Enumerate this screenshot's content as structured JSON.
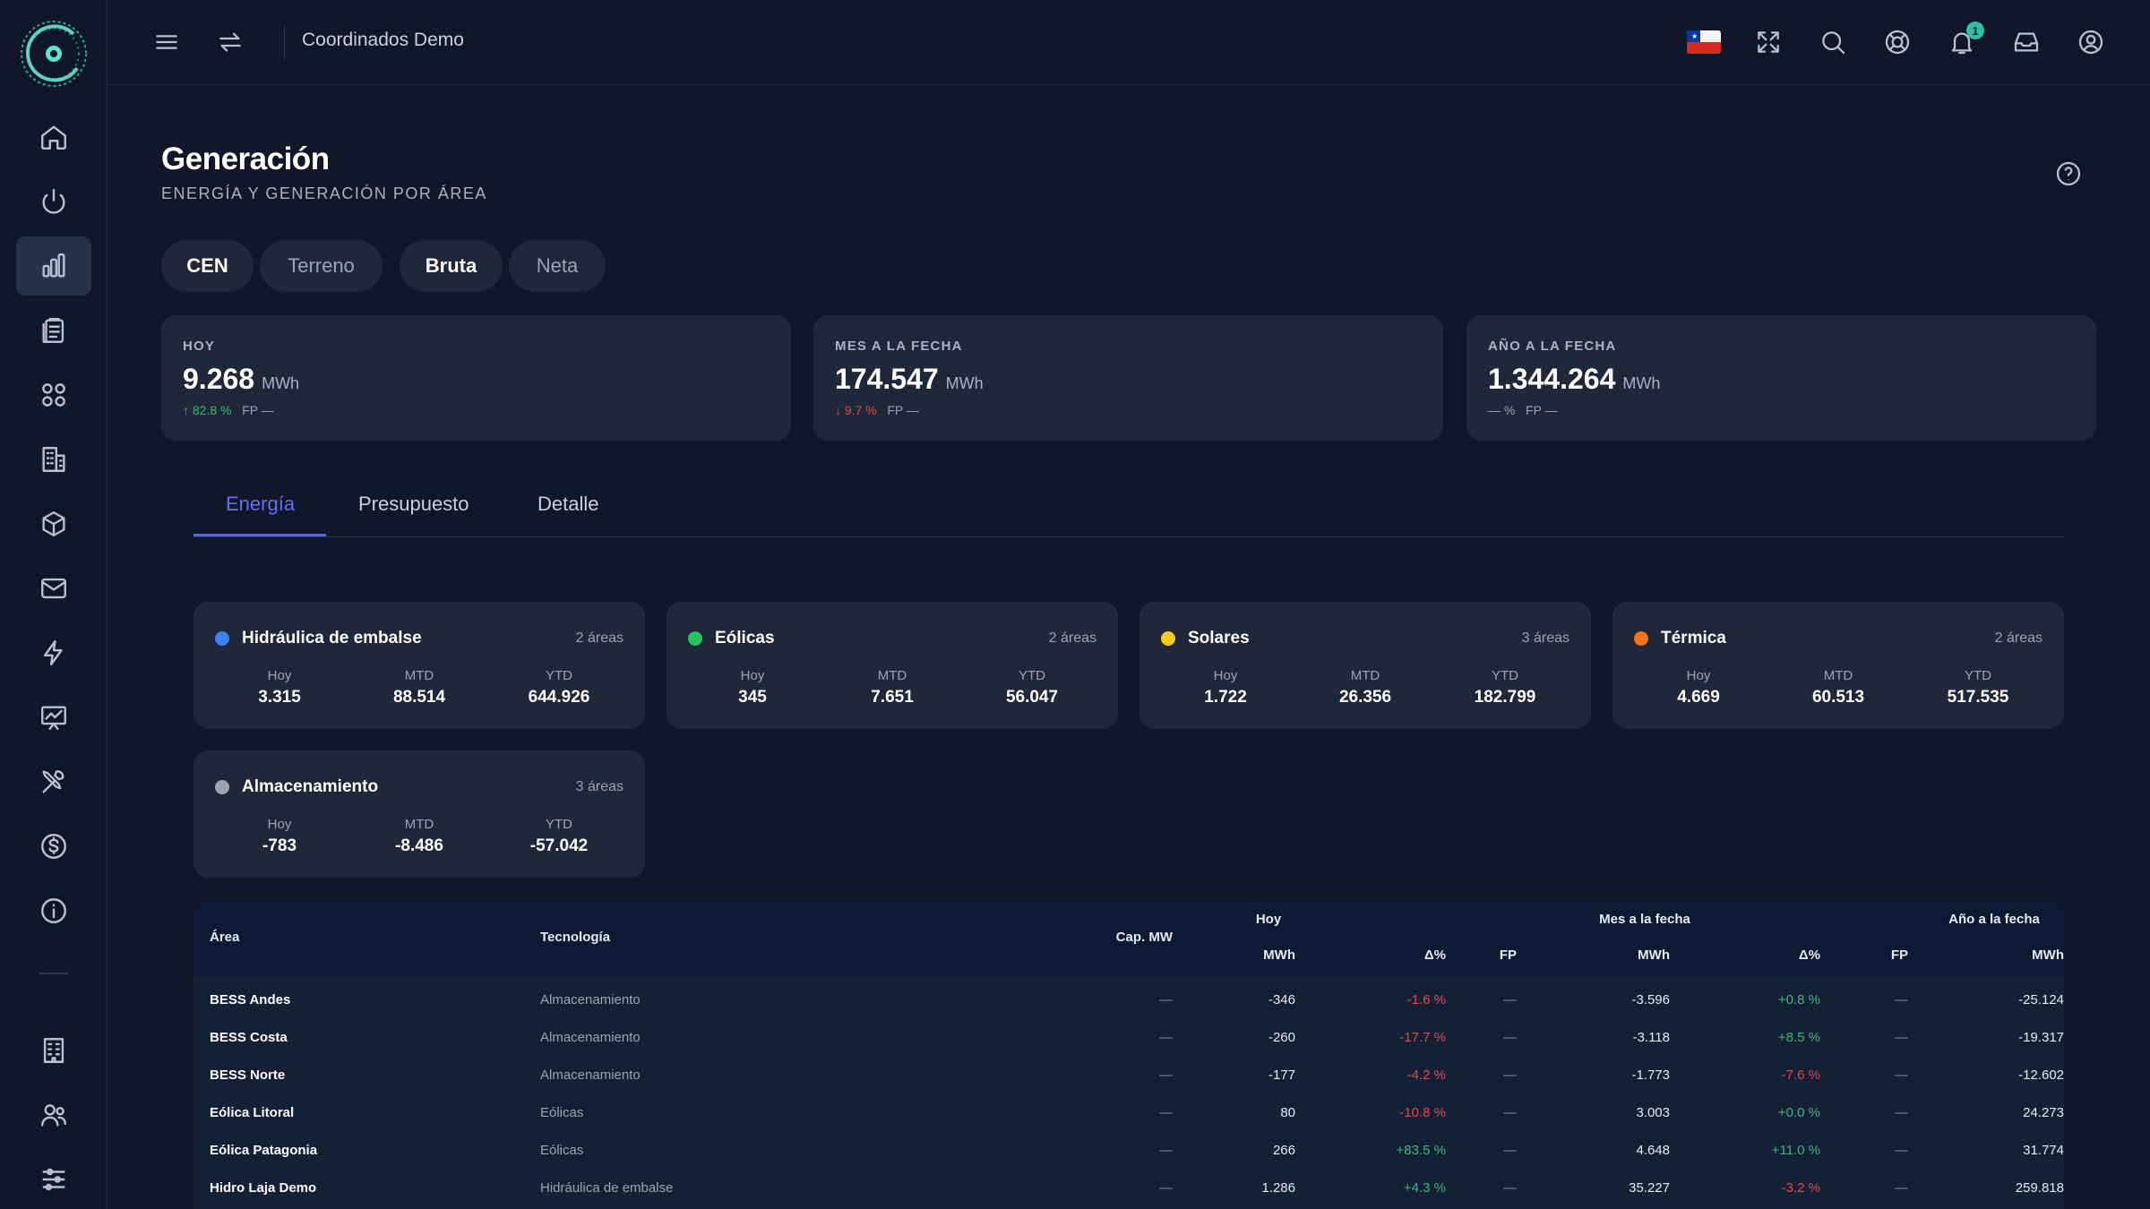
{
  "topbar": {
    "title": "Coordinados Demo",
    "notification_count": "1"
  },
  "page": {
    "title": "Generación",
    "subtitle": "ENERGÍA Y GENERACIÓN POR ÁREA"
  },
  "filters": [
    {
      "label": "CEN",
      "active": true
    },
    {
      "label": "Terreno",
      "active": false
    },
    {
      "label": "Bruta",
      "active": true
    },
    {
      "label": "Neta",
      "active": false
    }
  ],
  "kpis": [
    {
      "label": "HOY",
      "value": "9.268",
      "unit": "MWh",
      "delta": "↑ 82.8 %",
      "delta_dir": "up",
      "fp": "FP —"
    },
    {
      "label": "MES A LA FECHA",
      "value": "174.547",
      "unit": "MWh",
      "delta": "↓ 9.7 %",
      "delta_dir": "down",
      "fp": "FP —"
    },
    {
      "label": "AÑO A LA FECHA",
      "value": "1.344.264",
      "unit": "MWh",
      "delta": "— %",
      "delta_dir": "none",
      "fp": "FP —"
    }
  ],
  "tabs": [
    "Energía",
    "Presupuesto",
    "Detalle"
  ],
  "tech_cards": [
    {
      "name": "Hidráulica de embalse",
      "areas": "2 áreas",
      "color": "#3b82f6",
      "hoy": "3.315",
      "mtd": "88.514",
      "ytd": "644.926"
    },
    {
      "name": "Eólicas",
      "areas": "2 áreas",
      "color": "#22c55e",
      "hoy": "345",
      "mtd": "7.651",
      "ytd": "56.047"
    },
    {
      "name": "Solares",
      "areas": "3 áreas",
      "color": "#facc15",
      "hoy": "1.722",
      "mtd": "26.356",
      "ytd": "182.799"
    },
    {
      "name": "Térmica",
      "areas": "2 áreas",
      "color": "#f97316",
      "hoy": "4.669",
      "mtd": "60.513",
      "ytd": "517.535"
    },
    {
      "name": "Almacenamiento",
      "areas": "3 áreas",
      "color": "#9ca3af",
      "hoy": "-783",
      "mtd": "-8.486",
      "ytd": "-57.042"
    }
  ],
  "stat_labels": {
    "hoy": "Hoy",
    "mtd": "MTD",
    "ytd": "YTD"
  },
  "table": {
    "headers": {
      "area": "Área",
      "tecnologia": "Tecnología",
      "cap": "Cap. MW",
      "hoy": "Hoy",
      "mes": "Mes a la fecha",
      "ano": "Año a la fecha",
      "mwh": "MWh",
      "delta": "Δ%",
      "fp": "FP"
    },
    "rows": [
      {
        "area": "BESS Andes",
        "tech": "Almacenamiento",
        "cap": "—",
        "hoy_mwh": "-346",
        "hoy_d": "-1.6 %",
        "hoy_fp": "—",
        "mes_mwh": "-3.596",
        "mes_d": "+0.8 %",
        "mes_fp": "—",
        "ano_mwh": "-25.124",
        "ano_d": "—",
        "ano_fp": "—"
      },
      {
        "area": "BESS Costa",
        "tech": "Almacenamiento",
        "cap": "—",
        "hoy_mwh": "-260",
        "hoy_d": "-17.7 %",
        "hoy_fp": "—",
        "mes_mwh": "-3.118",
        "mes_d": "+8.5 %",
        "mes_fp": "—",
        "ano_mwh": "-19.317",
        "ano_d": "—",
        "ano_fp": "—"
      },
      {
        "area": "BESS Norte",
        "tech": "Almacenamiento",
        "cap": "—",
        "hoy_mwh": "-177",
        "hoy_d": "-4.2 %",
        "hoy_fp": "—",
        "mes_mwh": "-1.773",
        "mes_d": "-7.6 %",
        "mes_fp": "—",
        "ano_mwh": "-12.602",
        "ano_d": "—",
        "ano_fp": "—"
      },
      {
        "area": "Eólica Litoral",
        "tech": "Eólicas",
        "cap": "—",
        "hoy_mwh": "80",
        "hoy_d": "-10.8 %",
        "hoy_fp": "—",
        "mes_mwh": "3.003",
        "mes_d": "+0.0 %",
        "mes_fp": "—",
        "ano_mwh": "24.273",
        "ano_d": "—",
        "ano_fp": "—"
      },
      {
        "area": "Eólica Patagonia",
        "tech": "Eólicas",
        "cap": "—",
        "hoy_mwh": "266",
        "hoy_d": "+83.5 %",
        "hoy_fp": "—",
        "mes_mwh": "4.648",
        "mes_d": "+11.0 %",
        "mes_fp": "—",
        "ano_mwh": "31.774",
        "ano_d": "—",
        "ano_fp": "—"
      },
      {
        "area": "Hidro Laja Demo",
        "tech": "Hidráulica de embalse",
        "cap": "—",
        "hoy_mwh": "1.286",
        "hoy_d": "+4.3 %",
        "hoy_fp": "—",
        "mes_mwh": "35.227",
        "mes_d": "-3.2 %",
        "mes_fp": "—",
        "ano_mwh": "259.818",
        "ano_d": "—",
        "ano_fp": "—"
      }
    ]
  },
  "colors": {
    "accent": "#5b5fe6",
    "positive": "#3cb878",
    "negative": "#e5484d",
    "badge": "#2fbfa4"
  }
}
